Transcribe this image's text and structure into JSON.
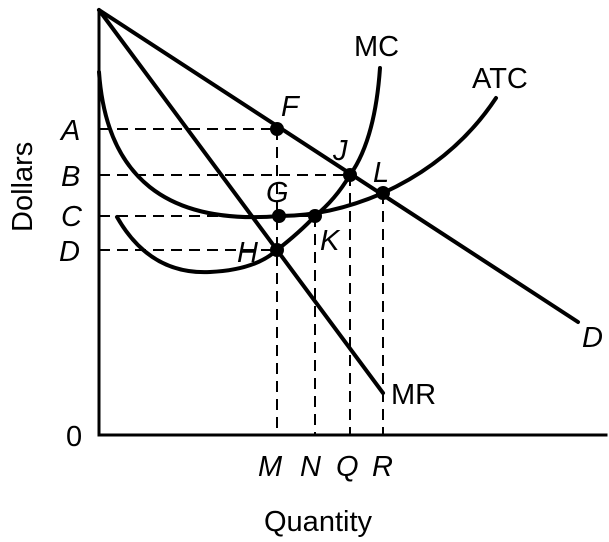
{
  "axes": {
    "ylabel": "Dollars",
    "xlabel": "Quantity",
    "origin": "0"
  },
  "curves": {
    "mc": "MC",
    "atc": "ATC",
    "mr": "MR",
    "demand": "D"
  },
  "price_levels": [
    "A",
    "B",
    "C",
    "D"
  ],
  "quantity_levels": [
    "M",
    "N",
    "Q",
    "R"
  ],
  "points": [
    "F",
    "J",
    "L",
    "G",
    "K",
    "H"
  ],
  "colors": {
    "ink": "#000000",
    "background": "#ffffff"
  }
}
